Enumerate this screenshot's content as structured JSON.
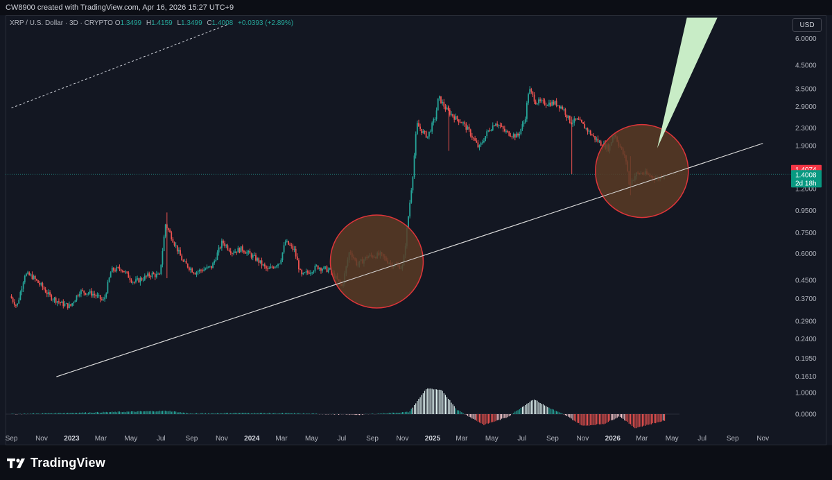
{
  "header": {
    "credit": "CW8900 created with TradingView.com, Apr 16, 2026 15:27 UTC+9"
  },
  "symbol_line": {
    "symbol": "XRP / U.S. Dollar · 3D · CRYPTO",
    "o_label": "O",
    "o_value": "1.3499",
    "h_label": "H",
    "h_value": "1.4159",
    "l_label": "L",
    "l_value": "1.3499",
    "c_label": "C",
    "c_value": "1.4008",
    "change": "+0.0393 (+2.89%)"
  },
  "currency_button": "USD",
  "price_tags": {
    "last": "1.4074",
    "close": "1.4008",
    "countdown": "2d 18h"
  },
  "brand": {
    "logo_text": "TradingView"
  },
  "colors": {
    "background": "#131722",
    "up": "#26a69a",
    "down": "#ef5350",
    "trendline": "#d9d9d9",
    "circle_fill": "#5a3b24",
    "circle_stroke": "#e0353a",
    "arrow": "#c8ecc6"
  },
  "chart_data": {
    "type": "candlestick",
    "symbol": "XRP / U.S. Dollar",
    "interval": "3D",
    "y_scale": "log",
    "y_ticks": [
      "6.0000",
      "4.5000",
      "3.5000",
      "2.9000",
      "2.3000",
      "1.9000",
      "1.2000",
      "0.9500",
      "0.7500",
      "0.6000",
      "0.4500",
      "0.3700",
      "0.2900",
      "0.2400",
      "0.1950",
      "0.1610"
    ],
    "x_ticks": [
      "Sep",
      "Nov",
      "2023",
      "Mar",
      "May",
      "Jul",
      "Sep",
      "Nov",
      "2024",
      "Mar",
      "May",
      "Jul",
      "Sep",
      "Nov",
      "2025",
      "Mar",
      "May",
      "Jul",
      "Sep",
      "Nov",
      "2026",
      "Mar",
      "May",
      "Jul",
      "Sep",
      "Nov"
    ],
    "bold_x_ticks": [
      "2023",
      "2024",
      "2025",
      "2026"
    ],
    "price_path": [
      {
        "date": "2022-09-01",
        "price": 0.38
      },
      {
        "date": "2022-09-15",
        "price": 0.34
      },
      {
        "date": "2022-10-01",
        "price": 0.48
      },
      {
        "date": "2022-10-15",
        "price": 0.47
      },
      {
        "date": "2022-11-05",
        "price": 0.42
      },
      {
        "date": "2022-11-20",
        "price": 0.38
      },
      {
        "date": "2022-12-15",
        "price": 0.35
      },
      {
        "date": "2023-01-01",
        "price": 0.34
      },
      {
        "date": "2023-01-20",
        "price": 0.4
      },
      {
        "date": "2023-02-15",
        "price": 0.39
      },
      {
        "date": "2023-03-10",
        "price": 0.36
      },
      {
        "date": "2023-03-25",
        "price": 0.5
      },
      {
        "date": "2023-04-15",
        "price": 0.51
      },
      {
        "date": "2023-05-10",
        "price": 0.44
      },
      {
        "date": "2023-06-15",
        "price": 0.48
      },
      {
        "date": "2023-07-01",
        "price": 0.47
      },
      {
        "date": "2023-07-13",
        "price": 0.82
      },
      {
        "date": "2023-07-25",
        "price": 0.72
      },
      {
        "date": "2023-08-17",
        "price": 0.55
      },
      {
        "date": "2023-09-10",
        "price": 0.49
      },
      {
        "date": "2023-10-15",
        "price": 0.52
      },
      {
        "date": "2023-11-05",
        "price": 0.68
      },
      {
        "date": "2023-11-25",
        "price": 0.61
      },
      {
        "date": "2023-12-15",
        "price": 0.63
      },
      {
        "date": "2024-01-15",
        "price": 0.56
      },
      {
        "date": "2024-02-05",
        "price": 0.5
      },
      {
        "date": "2024-03-01",
        "price": 0.55
      },
      {
        "date": "2024-03-12",
        "price": 0.68
      },
      {
        "date": "2024-03-30",
        "price": 0.62
      },
      {
        "date": "2024-04-13",
        "price": 0.47
      },
      {
        "date": "2024-05-15",
        "price": 0.52
      },
      {
        "date": "2024-06-10",
        "price": 0.5
      },
      {
        "date": "2024-07-05",
        "price": 0.42
      },
      {
        "date": "2024-07-20",
        "price": 0.62
      },
      {
        "date": "2024-08-05",
        "price": 0.53
      },
      {
        "date": "2024-08-25",
        "price": 0.58
      },
      {
        "date": "2024-09-20",
        "price": 0.59
      },
      {
        "date": "2024-10-15",
        "price": 0.53
      },
      {
        "date": "2024-11-05",
        "price": 0.52
      },
      {
        "date": "2024-11-15",
        "price": 0.85
      },
      {
        "date": "2024-11-25",
        "price": 1.4
      },
      {
        "date": "2024-12-03",
        "price": 2.4
      },
      {
        "date": "2024-12-15",
        "price": 2.2
      },
      {
        "date": "2024-12-25",
        "price": 2.1
      },
      {
        "date": "2025-01-10",
        "price": 2.6
      },
      {
        "date": "2025-01-16",
        "price": 3.2
      },
      {
        "date": "2025-02-01",
        "price": 2.8
      },
      {
        "date": "2025-02-20",
        "price": 2.55
      },
      {
        "date": "2025-03-05",
        "price": 2.45
      },
      {
        "date": "2025-03-20",
        "price": 2.2
      },
      {
        "date": "2025-04-08",
        "price": 1.85
      },
      {
        "date": "2025-04-25",
        "price": 2.2
      },
      {
        "date": "2025-05-12",
        "price": 2.45
      },
      {
        "date": "2025-06-01",
        "price": 2.2
      },
      {
        "date": "2025-06-25",
        "price": 2.1
      },
      {
        "date": "2025-07-10",
        "price": 2.5
      },
      {
        "date": "2025-07-18",
        "price": 3.5
      },
      {
        "date": "2025-08-01",
        "price": 3.05
      },
      {
        "date": "2025-08-20",
        "price": 3.0
      },
      {
        "date": "2025-09-10",
        "price": 3.0
      },
      {
        "date": "2025-09-25",
        "price": 2.85
      },
      {
        "date": "2025-10-10",
        "price": 2.45
      },
      {
        "date": "2025-10-25",
        "price": 2.5
      },
      {
        "date": "2025-11-10",
        "price": 2.3
      },
      {
        "date": "2025-11-25",
        "price": 2.1
      },
      {
        "date": "2025-12-10",
        "price": 1.95
      },
      {
        "date": "2025-12-28",
        "price": 1.85
      },
      {
        "date": "2026-01-06",
        "price": 2.2
      },
      {
        "date": "2026-01-18",
        "price": 1.9
      },
      {
        "date": "2026-02-01",
        "price": 1.6
      },
      {
        "date": "2026-02-06",
        "price": 1.25
      },
      {
        "date": "2026-02-20",
        "price": 1.4
      },
      {
        "date": "2026-03-05",
        "price": 1.42
      },
      {
        "date": "2026-03-20",
        "price": 1.38
      },
      {
        "date": "2026-04-05",
        "price": 1.33
      },
      {
        "date": "2026-04-16",
        "price": 1.4
      }
    ],
    "oscillator_zero_label": "0.0000",
    "oscillator_upper_label": "1.0000",
    "oscillator": [
      {
        "date": "2022-09-01",
        "value": 0.0
      },
      {
        "date": "2023-07-15",
        "value": 0.15
      },
      {
        "date": "2023-09-01",
        "value": 0.02
      },
      {
        "date": "2023-12-01",
        "value": 0.05
      },
      {
        "date": "2024-04-01",
        "value": 0.03
      },
      {
        "date": "2024-08-01",
        "value": -0.03
      },
      {
        "date": "2024-11-15",
        "value": 0.1
      },
      {
        "date": "2024-12-20",
        "value": 1.2
      },
      {
        "date": "2025-01-20",
        "value": 1.1
      },
      {
        "date": "2025-02-20",
        "value": 0.2
      },
      {
        "date": "2025-04-15",
        "value": -0.5
      },
      {
        "date": "2025-06-01",
        "value": -0.15
      },
      {
        "date": "2025-07-25",
        "value": 0.7
      },
      {
        "date": "2025-08-20",
        "value": 0.35
      },
      {
        "date": "2025-10-01",
        "value": -0.1
      },
      {
        "date": "2025-11-01",
        "value": -0.55
      },
      {
        "date": "2025-12-15",
        "value": -0.45
      },
      {
        "date": "2026-01-15",
        "value": -0.1
      },
      {
        "date": "2026-02-15",
        "value": -0.65
      },
      {
        "date": "2026-04-16",
        "value": -0.3
      }
    ],
    "annotations": [
      {
        "type": "trendline",
        "from": {
          "date": "2022-12-01",
          "price": 0.16
        },
        "to": {
          "date": "2026-11-01",
          "price": 1.95
        }
      },
      {
        "type": "dashed_line",
        "from": {
          "date": "2022-09-01",
          "price": 2.85
        },
        "to": {
          "date": "2023-11-15",
          "price": 7.0
        }
      },
      {
        "type": "circle_highlight",
        "center": {
          "date": "2024-09-10",
          "price": 0.55
        }
      },
      {
        "type": "circle_highlight",
        "center": {
          "date": "2026-03-01",
          "price": 1.45
        }
      },
      {
        "type": "target_arrow",
        "from": {
          "date": "2026-04-01",
          "price": 1.85
        },
        "to": {
          "date": "2026-07-01",
          "price": 7.5
        }
      }
    ]
  }
}
